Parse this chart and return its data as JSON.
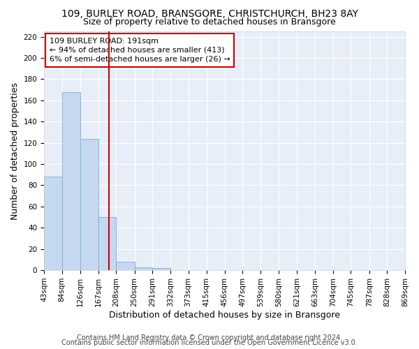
{
  "title": "109, BURLEY ROAD, BRANSGORE, CHRISTCHURCH, BH23 8AY",
  "subtitle": "Size of property relative to detached houses in Bransgore",
  "xlabel": "Distribution of detached houses by size in Bransgore",
  "ylabel": "Number of detached properties",
  "footer_line1": "Contains HM Land Registry data © Crown copyright and database right 2024.",
  "footer_line2": "Contains public sector information licensed under the Open Government Licence v3.0.",
  "annotation_line1": "109 BURLEY ROAD: 191sqm",
  "annotation_line2": "← 94% of detached houses are smaller (413)",
  "annotation_line3": "6% of semi-detached houses are larger (26) →",
  "bar_color": "#c5d8ef",
  "bar_edge_color": "#7aafd4",
  "vline_color": "#cc0000",
  "annotation_box_edge_color": "#cc0000",
  "background_color": "#e8eef8",
  "grid_color": "#ffffff",
  "bin_edges": [
    43,
    84,
    126,
    167,
    208,
    250,
    291,
    332,
    373,
    415,
    456,
    497,
    539,
    580,
    621,
    663,
    704,
    745,
    787,
    828,
    869
  ],
  "bin_labels": [
    "43sqm",
    "84sqm",
    "126sqm",
    "167sqm",
    "208sqm",
    "250sqm",
    "291sqm",
    "332sqm",
    "373sqm",
    "415sqm",
    "456sqm",
    "497sqm",
    "539sqm",
    "580sqm",
    "621sqm",
    "663sqm",
    "704sqm",
    "745sqm",
    "787sqm",
    "828sqm",
    "869sqm"
  ],
  "values": [
    88,
    168,
    124,
    50,
    8,
    3,
    2,
    0,
    0,
    0,
    0,
    0,
    0,
    0,
    0,
    0,
    0,
    0,
    0,
    0
  ],
  "ylim": [
    0,
    225
  ],
  "yticks": [
    0,
    20,
    40,
    60,
    80,
    100,
    120,
    140,
    160,
    180,
    200,
    220
  ],
  "vline_value": 191,
  "bin_width": 41,
  "title_fontsize": 10,
  "subtitle_fontsize": 9,
  "axis_label_fontsize": 9,
  "tick_fontsize": 7.5,
  "annotation_fontsize": 8,
  "footer_fontsize": 7
}
